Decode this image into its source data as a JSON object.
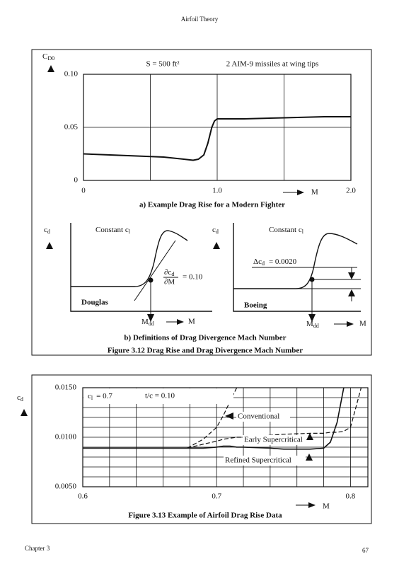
{
  "header": {
    "title": "Airfoil Theory"
  },
  "chart_data": [
    {
      "type": "line",
      "title": "a) Example Drag Rise for a Modern Fighter",
      "ylabel": {
        "main": "C",
        "sub": "D0"
      },
      "xlabel": "M",
      "annotations": [
        "S = 500 ft²",
        "2 AIM-9 missiles at wing tips"
      ],
      "x": [
        0,
        0.2,
        0.4,
        0.6,
        0.75,
        0.82,
        0.86,
        0.9,
        0.93,
        0.96,
        0.98,
        1.0,
        1.05,
        1.2,
        1.5,
        1.8,
        2.0
      ],
      "series": [
        {
          "color": "#111111",
          "dash": false,
          "width": 2,
          "values": [
            0.025,
            0.024,
            0.023,
            0.022,
            0.02,
            0.019,
            0.02,
            0.024,
            0.035,
            0.05,
            0.056,
            0.058,
            0.058,
            0.058,
            0.059,
            0.06,
            0.06
          ]
        }
      ],
      "xlim": [
        0,
        2
      ],
      "ylim": [
        0,
        0.1
      ],
      "xticks": [
        0,
        {
          "value": 1,
          "label": "1.0"
        },
        {
          "value": 2,
          "label": "2.0"
        }
      ],
      "yticks": [
        0,
        0.05,
        {
          "value": 0.1,
          "label": "0.10"
        }
      ],
      "grid": true,
      "minor_xgrid": [
        0.5,
        1.5
      ],
      "minor_ygrid": []
    },
    {
      "type": "line",
      "title": "Figure 3.13 Example of Airfoil Drag Rise Data",
      "ylabel": {
        "main": "c",
        "sub": "d"
      },
      "xlabel": "M",
      "conditions": {
        "cl": {
          "main": "c",
          "sub": "l",
          "value": "= 0.7"
        },
        "tc": "t/c = 0.10"
      },
      "x": [
        0.6,
        0.65,
        0.678,
        0.69,
        0.7,
        0.705,
        0.71,
        0.715,
        0.72,
        0.74,
        0.75,
        0.77,
        0.78,
        0.785,
        0.79,
        0.795,
        0.8,
        0.804,
        0.808
      ],
      "series": [
        {
          "name": "Conventional",
          "color": "#111111",
          "dash": true,
          "width": 1.2,
          "values": [
            null,
            null,
            0.0089,
            0.0098,
            0.011,
            0.0122,
            0.0136,
            0.015,
            null,
            null,
            null,
            null,
            null,
            null,
            null,
            null,
            null,
            null,
            null
          ]
        },
        {
          "name": "Early Supercritical",
          "color": "#111111",
          "dash": true,
          "width": 1.2,
          "values": [
            null,
            null,
            0.0089,
            0.0093,
            0.0096,
            0.0098,
            0.0099,
            0.01,
            0.01,
            0.0102,
            0.0103,
            0.0104,
            0.0104,
            0.0105,
            0.0105,
            0.0106,
            0.011,
            0.013,
            0.015
          ]
        },
        {
          "name": "Refined Supercritical",
          "color": "#111111",
          "dash": false,
          "width": 1.6,
          "values": [
            0.0089,
            0.0089,
            0.0089,
            0.0089,
            0.009,
            0.0091,
            0.0091,
            0.009,
            0.009,
            0.0089,
            0.0088,
            0.0088,
            0.0089,
            0.0095,
            0.0115,
            0.015,
            null,
            null,
            null
          ]
        }
      ],
      "xlim": [
        0.6,
        0.813
      ],
      "ylim": [
        0.005,
        0.015
      ],
      "xticks": [
        0.6,
        0.7,
        0.8
      ],
      "yticks": [
        {
          "value": 0.015,
          "label": "0.0150"
        },
        {
          "value": 0.01,
          "label": "0.0100"
        },
        {
          "value": 0.005,
          "label": "0.0050"
        }
      ],
      "grid": true,
      "minor_xgrid": [
        0.62,
        0.64,
        0.66,
        0.68,
        0.72,
        0.74,
        0.76,
        0.78
      ],
      "minor_ygrid": [
        0.006,
        0.007,
        0.008,
        0.009,
        0.011,
        0.012,
        0.013,
        0.014
      ]
    }
  ],
  "panel_b": {
    "caption": "b) Definitions of Drag Divergence Mach Number",
    "left": {
      "ylabel": {
        "main": "c",
        "sub": "d"
      },
      "condition": {
        "main": "Constant c",
        "sub": "l"
      },
      "slope": {
        "num": "∂c",
        "num_sub": "d",
        "den": "∂M",
        "value": "= 0.10"
      },
      "name": "Douglas",
      "mdd": {
        "main": "M",
        "sub": "dd"
      },
      "m": "M"
    },
    "right": {
      "ylabel": {
        "main": "c",
        "sub": "d"
      },
      "condition": {
        "main": "Constant c",
        "sub": "l"
      },
      "delta": {
        "main": "Δc",
        "sub": "d",
        "value": "= 0.0020"
      },
      "name": "Boeing",
      "mdd": {
        "main": "M",
        "sub": "dd"
      },
      "m": "M"
    }
  },
  "figure_3_12_caption": "Figure 3.12  Drag Rise and Drag Divergence Mach Number",
  "footer": {
    "chapter": "Chapter 3",
    "page": "67"
  }
}
